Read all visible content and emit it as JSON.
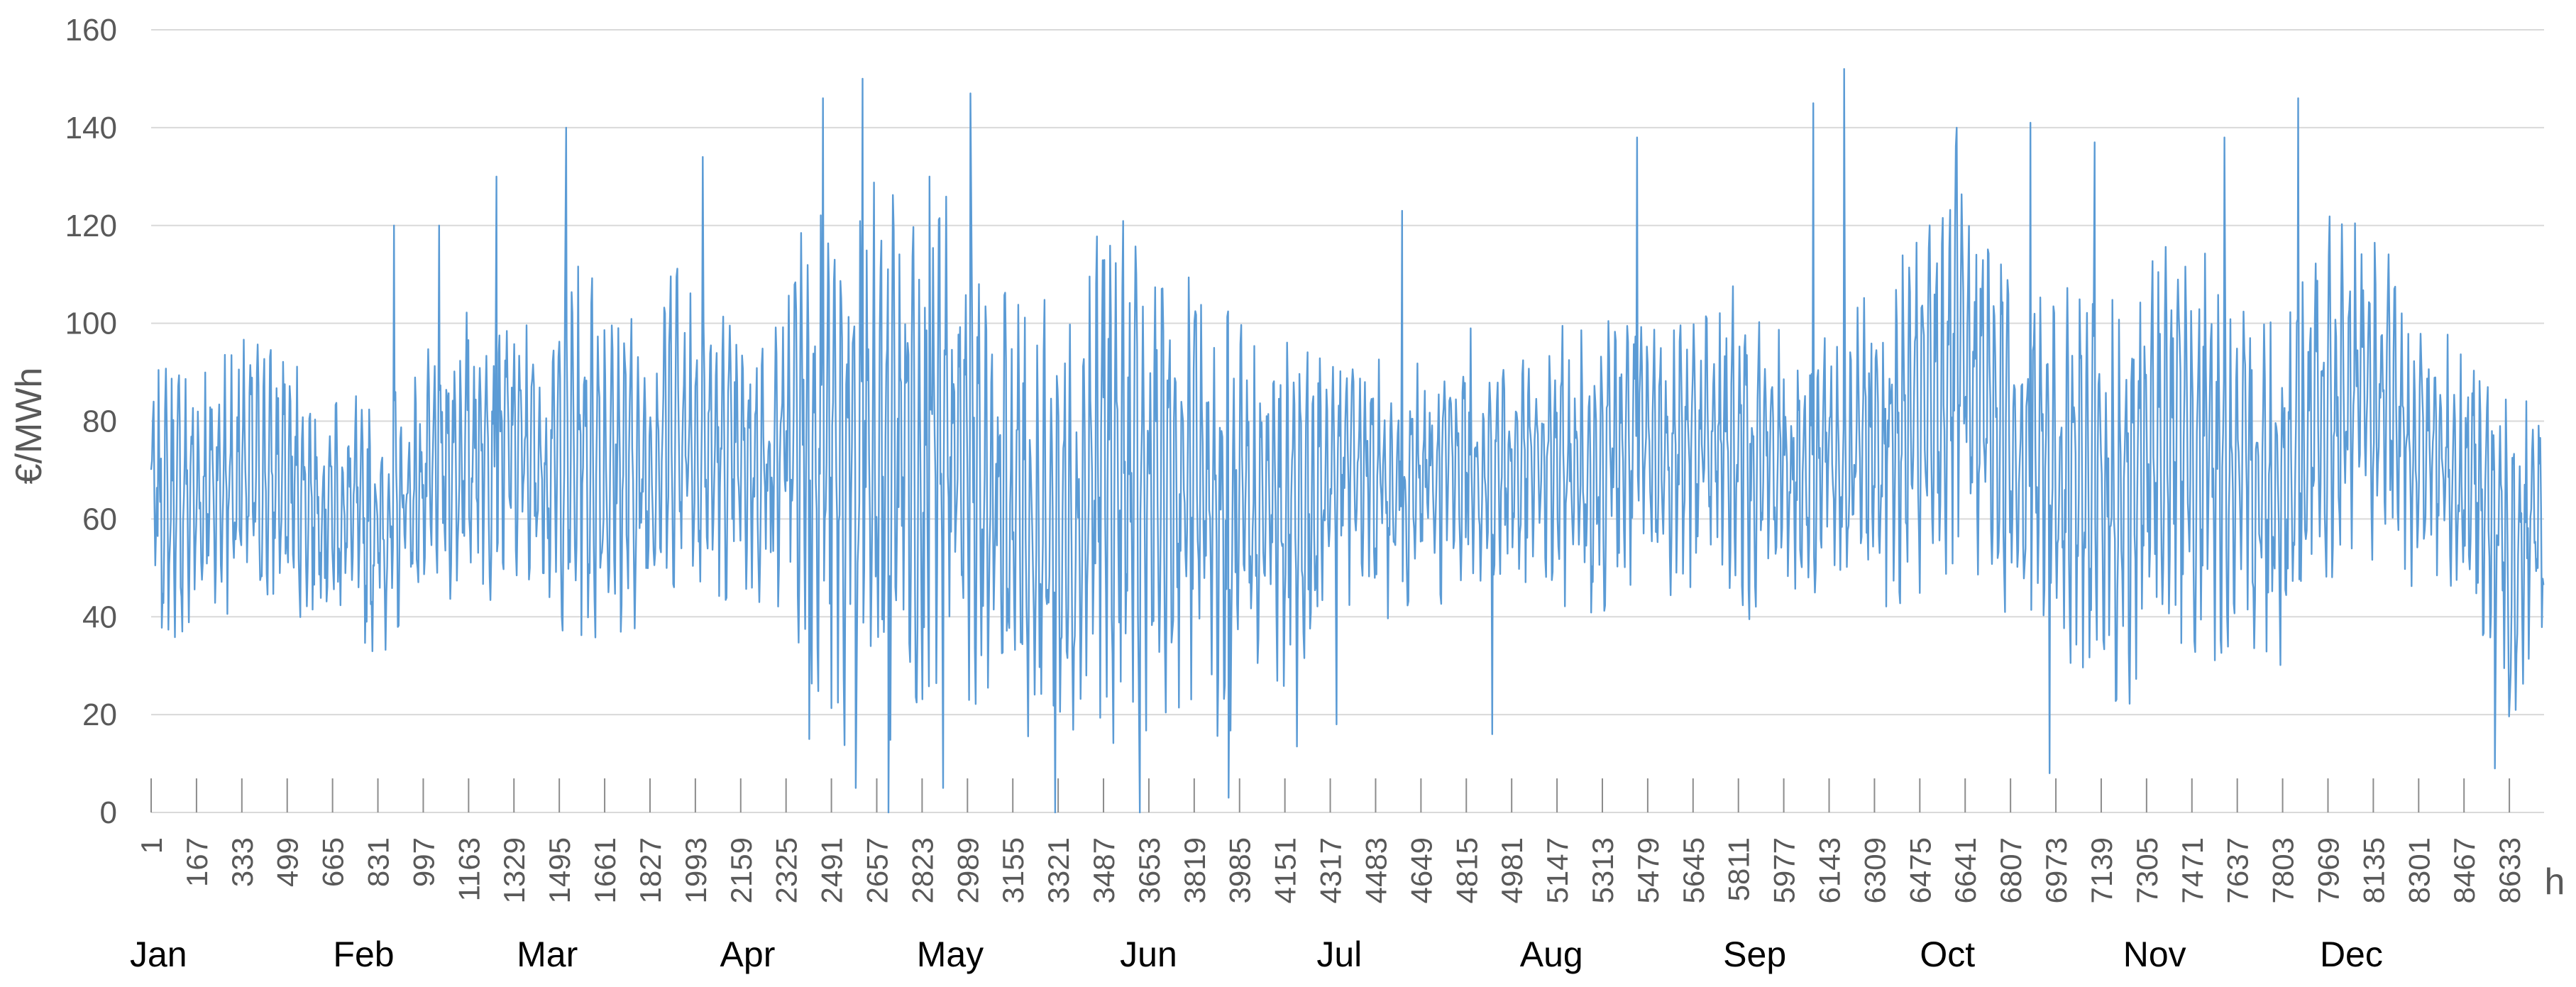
{
  "chart_data": {
    "type": "line",
    "title": "",
    "xlabel": "h",
    "ylabel": "€/MWh",
    "ylim": [
      0,
      160
    ],
    "xlim": [
      1,
      8760
    ],
    "yticks": [
      "0",
      "20",
      "40",
      "60",
      "80",
      "100",
      "120",
      "140",
      "160"
    ],
    "xtick_values": [
      1,
      167,
      333,
      499,
      665,
      831,
      997,
      1163,
      1329,
      1495,
      1661,
      1827,
      1993,
      2159,
      2325,
      2491,
      2657,
      2823,
      2989,
      3155,
      3321,
      3487,
      3653,
      3819,
      3985,
      4151,
      4317,
      4483,
      4649,
      4815,
      4981,
      5147,
      5313,
      5479,
      5645,
      5811,
      5977,
      6143,
      6309,
      6475,
      6641,
      6807,
      6973,
      7139,
      7305,
      7471,
      7637,
      7803,
      7969,
      8135,
      8301,
      8467,
      8633
    ],
    "xtick_labels": [
      "1",
      "167",
      "333",
      "499",
      "665",
      "831",
      "997",
      "1163",
      "1329",
      "1495",
      "1661",
      "1827",
      "1993",
      "2159",
      "2325",
      "2491",
      "2657",
      "2823",
      "2989",
      "3155",
      "3321",
      "3487",
      "3653",
      "3819",
      "3985",
      "4151",
      "4317",
      "4483",
      "4649",
      "4815",
      "4981",
      "5147",
      "5313",
      "5479",
      "5645",
      "5811",
      "5977",
      "6143",
      "6309",
      "6475",
      "6641",
      "6807",
      "6973",
      "7139",
      "7305",
      "7471",
      "7637",
      "7803",
      "7969",
      "8135",
      "8301",
      "8467",
      "8633"
    ],
    "months": [
      {
        "label": "Jan",
        "hour": 1
      },
      {
        "label": "Feb",
        "hour": 745
      },
      {
        "label": "Mar",
        "hour": 1417
      },
      {
        "label": "Apr",
        "hour": 2161
      },
      {
        "label": "May",
        "hour": 2881
      },
      {
        "label": "Jun",
        "hour": 3625
      },
      {
        "label": "Jul",
        "hour": 4345
      },
      {
        "label": "Aug",
        "hour": 5089
      },
      {
        "label": "Sep",
        "hour": 5833
      },
      {
        "label": "Oct",
        "hour": 6553
      },
      {
        "label": "Nov",
        "hour": 7297
      },
      {
        "label": "Dec",
        "hour": 8017
      }
    ],
    "series": [
      {
        "color": "#5B9BD5",
        "note": "hourly values approximated as envelope (typical low, typical high) per ~5 days",
        "x": [
          1,
          121,
          241,
          361,
          481,
          601,
          721,
          841,
          961,
          1081,
          1201,
          1321,
          1441,
          1561,
          1681,
          1801,
          1921,
          2041,
          2161,
          2281,
          2401,
          2521,
          2641,
          2761,
          2881,
          3001,
          3121,
          3241,
          3361,
          3481,
          3601,
          3721,
          3841,
          3961,
          4081,
          4201,
          4321,
          4441,
          4561,
          4681,
          4801,
          4921,
          5041,
          5161,
          5281,
          5401,
          5521,
          5641,
          5761,
          5881,
          6001,
          6121,
          6241,
          6361,
          6481,
          6601,
          6721,
          6841,
          6961,
          7081,
          7201,
          7321,
          7441,
          7561,
          7681,
          7801,
          7921,
          8041,
          8161,
          8281,
          8401,
          8521,
          8641,
          8760
        ],
        "low": [
          35,
          32,
          36,
          38,
          40,
          36,
          32,
          29,
          38,
          40,
          42,
          44,
          40,
          32,
          33,
          36,
          42,
          40,
          42,
          38,
          28,
          10,
          8,
          15,
          5,
          20,
          18,
          10,
          8,
          12,
          10,
          20,
          18,
          6,
          30,
          10,
          40,
          42,
          35,
          40,
          45,
          42,
          45,
          40,
          38,
          40,
          42,
          42,
          40,
          38,
          40,
          40,
          42,
          38,
          40,
          45,
          42,
          38,
          30,
          25,
          15,
          28,
          30,
          28,
          30,
          28,
          32,
          45,
          50,
          45,
          42,
          36,
          12,
          30
        ],
        "high": [
          92,
          95,
          98,
          100,
          96,
          92,
          90,
          85,
          92,
          100,
          110,
          105,
          100,
          115,
          110,
          100,
          120,
          108,
          100,
          105,
          130,
          128,
          132,
          140,
          135,
          120,
          110,
          105,
          108,
          130,
          120,
          110,
          118,
          105,
          95,
          110,
          100,
          98,
          92,
          96,
          100,
          98,
          96,
          100,
          102,
          110,
          105,
          108,
          112,
          108,
          100,
          104,
          106,
          115,
          120,
          138,
          125,
          110,
          115,
          108,
          112,
          120,
          125,
          110,
          105,
          108,
          122,
          125,
          118,
          105,
          100,
          98,
          96,
          90
        ],
        "peaks": [
          {
            "x": 890,
            "y": 120
          },
          {
            "x": 1055,
            "y": 120
          },
          {
            "x": 1265,
            "y": 130
          },
          {
            "x": 1520,
            "y": 140
          },
          {
            "x": 2020,
            "y": 134
          },
          {
            "x": 2460,
            "y": 146
          },
          {
            "x": 2605,
            "y": 150
          },
          {
            "x": 2850,
            "y": 130
          },
          {
            "x": 3000,
            "y": 147
          },
          {
            "x": 3620,
            "y": 122
          },
          {
            "x": 4580,
            "y": 123
          },
          {
            "x": 5440,
            "y": 138
          },
          {
            "x": 6085,
            "y": 145
          },
          {
            "x": 6198,
            "y": 152
          },
          {
            "x": 6610,
            "y": 140
          },
          {
            "x": 6880,
            "y": 141
          },
          {
            "x": 7115,
            "y": 137
          },
          {
            "x": 7590,
            "y": 138
          },
          {
            "x": 7860,
            "y": 146
          }
        ],
        "dips": [
          {
            "x": 2410,
            "y": 15
          },
          {
            "x": 2580,
            "y": 5
          },
          {
            "x": 2700,
            "y": 0
          },
          {
            "x": 2900,
            "y": 5
          },
          {
            "x": 3310,
            "y": 0
          },
          {
            "x": 3620,
            "y": 0
          },
          {
            "x": 3945,
            "y": 3
          },
          {
            "x": 4340,
            "y": 18
          },
          {
            "x": 4910,
            "y": 16
          },
          {
            "x": 6950,
            "y": 8
          },
          {
            "x": 8580,
            "y": 9
          }
        ]
      }
    ]
  }
}
